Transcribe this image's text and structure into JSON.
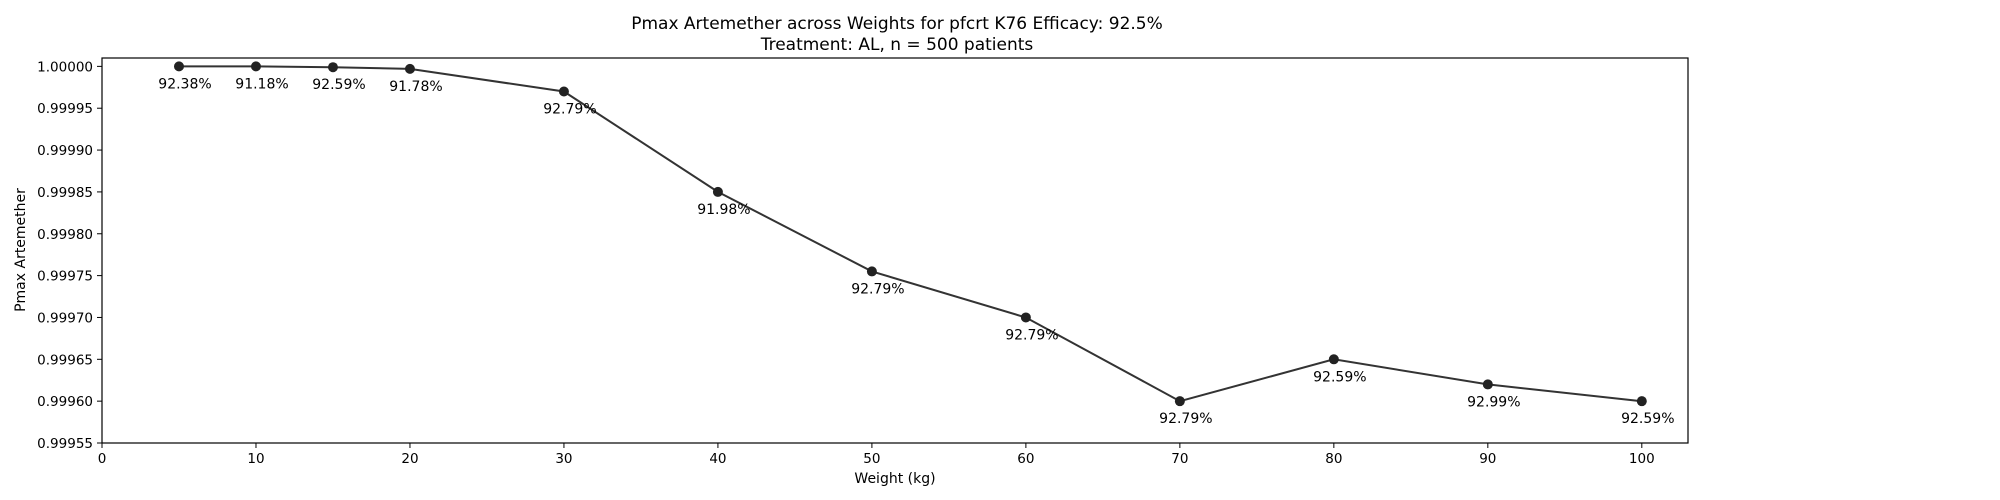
{
  "chart_data": {
    "type": "line",
    "title": "Pmax Artemether across Weights for pfcrt K76 Efficacy: 92.5%",
    "subtitle": "Treatment: AL, n = 500 patients",
    "xlabel": "Weight (kg)",
    "ylabel": "Pmax Artemether",
    "xlim": [
      0,
      103
    ],
    "ylim": [
      0.99955,
      1.00001
    ],
    "xticks": [
      0,
      10,
      20,
      30,
      40,
      50,
      60,
      70,
      80,
      90,
      100
    ],
    "yticks": [
      0.99955,
      0.9996,
      0.99965,
      0.9997,
      0.99975,
      0.9998,
      0.99985,
      0.9999,
      0.99995,
      1.0
    ],
    "grid": false,
    "line_color": "#333333",
    "marker_color": "#222222",
    "x": [
      5,
      10,
      15,
      20,
      30,
      40,
      50,
      60,
      70,
      80,
      90,
      100
    ],
    "y": [
      1.0,
      1.0,
      0.999999,
      0.999997,
      0.99997,
      0.99985,
      0.999755,
      0.9997,
      0.9996,
      0.99965,
      0.99962,
      0.9996
    ],
    "point_labels": [
      "92.38%",
      "91.18%",
      "92.59%",
      "91.78%",
      "92.79%",
      "91.98%",
      "92.79%",
      "92.79%",
      "92.79%",
      "92.59%",
      "92.99%",
      "92.59%"
    ]
  }
}
